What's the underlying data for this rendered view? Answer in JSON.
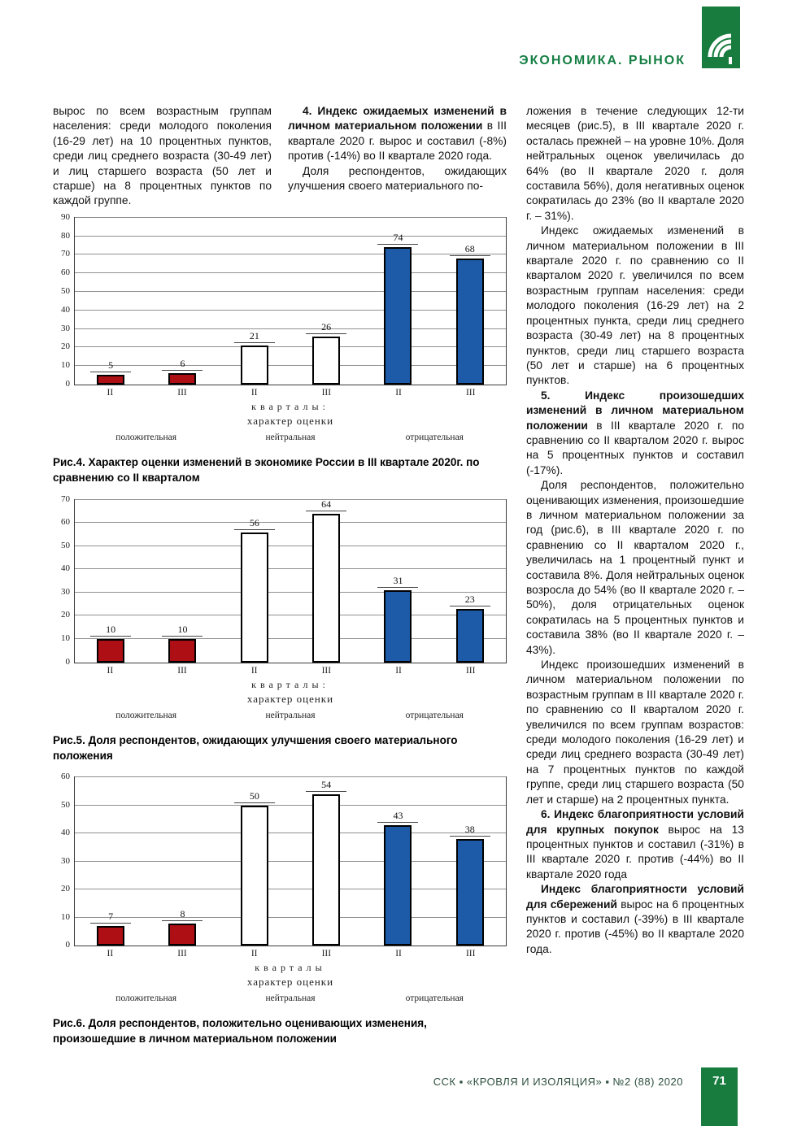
{
  "header": {
    "section_label": "ЭКОНОМИКА. РЫНОК"
  },
  "colors": {
    "brand_green": "#177c3e",
    "bar_positive_red": "#ad0f14",
    "bar_neutral_white": "#ffffff",
    "bar_negative_blue": "#1d5aa8",
    "gridline_gray": "#909090"
  },
  "columns": {
    "left": {
      "paragraphs": [
        {
          "segments": [
            {
              "t": "вырос по всем возрастным группам населения: среди молодого поколения (16-29 лет) на 10 процентных пунктов, среди лиц среднего возраста (30-49 лет) и лиц старшего возраста (50 лет и старше) на 8 процентных пунктов по каждой группе.",
              "b": false
            }
          ]
        }
      ]
    },
    "middle": {
      "paragraphs": [
        {
          "segments": [
            {
              "t": "4. Индекс ожидаемых изменений в личном материальном положении",
              "b": true
            },
            {
              "t": " в III квартале 2020 г. вырос и составил (-8%) против (-14%) во II квартале 2020 года.",
              "b": false
            }
          ]
        },
        {
          "segments": [
            {
              "t": "Доля респондентов, ожидающих улучшения своего материального по-",
              "b": false
            }
          ]
        }
      ]
    },
    "right": {
      "paragraphs": [
        {
          "segments": [
            {
              "t": "ложения в течение следующих 12-ти месяцев (рис.5), в III квартале 2020 г. осталась прежней – на уровне 10%. Доля нейтральных оценок увеличилась до 64% (во II квартале 2020 г. доля составила 56%), доля негативных оценок сократилась до 23% (во II квартале 2020 г. – 31%).",
              "b": false
            }
          ]
        },
        {
          "segments": [
            {
              "t": "Индекс ожидаемых изменений в личном материальном положении в III квартале 2020 г. по сравнению со II кварталом 2020 г. увеличился по всем возрастным группам населения: среди молодого поколения (16-29 лет) на 2 процентных пункта, среди лиц среднего возраста (30-49 лет) на 8 процентных пунктов, среди лиц старшего возраста (50 лет и старше) на 6 процентных пунктов.",
              "b": false
            }
          ]
        },
        {
          "segments": [
            {
              "t": "5. Индекс произошедших изменений в личном материальном положении",
              "b": true
            },
            {
              "t": " в III квартале 2020 г. по сравнению со II кварталом 2020 г. вырос на 5 процентных пунктов и составил (-17%).",
              "b": false
            }
          ]
        },
        {
          "segments": [
            {
              "t": "Доля респондентов, положительно оценивающих изменения, произошедшие в личном материальном положении за год (рис.6), в III квартале 2020 г. по сравнению со II кварталом 2020 г., увеличилась на 1 процентный пункт и составила 8%. Доля нейтральных оценок возросла до 54% (во II квартале 2020 г. – 50%), доля отрицательных оценок сократилась на 5 процентных пунктов и составила 38% (во II квартале 2020 г. – 43%).",
              "b": false
            }
          ]
        },
        {
          "segments": [
            {
              "t": "Индекс произошедших изменений в личном материальном положении по возрастным группам в III квартале 2020 г. по сравнению со II кварталом 2020 г. увеличился по всем группам возрастов: среди молодого поколения (16-29 лет) и среди лиц среднего возраста (30-49 лет) на 7 процентных пунктов по каждой группе, среди лиц старшего возраста (50 лет и старше) на 2 процентных пункта.",
              "b": false
            }
          ]
        },
        {
          "segments": [
            {
              "t": "6. Индекс благоприятности условий для крупных покупок",
              "b": true
            },
            {
              "t": " вырос на 13 процентных пунктов и составил (-31%) в III квартале 2020 г. против (-44%) во II квартале 2020 года",
              "b": false
            }
          ]
        },
        {
          "segments": [
            {
              "t": "Индекс благоприятности условий для сбережений",
              "b": true
            },
            {
              "t": " вырос на 6 процентных пунктов и составил (-39%) в III квартале 2020 г. против (-45%) во II квартале 2020 года.",
              "b": false
            }
          ]
        }
      ]
    }
  },
  "figures": [
    {
      "caption": "Рис.4. Характер оценки изменений в экономике России в III квартале 2020г. по сравнению со II кварталом"
    },
    {
      "caption": "Рис.5. Доля респондентов, ожидающих улучшения своего материального положения"
    },
    {
      "caption": "Рис.6. Доля респондентов, положительно оценивающих изменения, произошедшие в личном материальном положении"
    }
  ],
  "chart_data": [
    {
      "type": "bar",
      "title": "Рис.4. Характер оценки изменений в экономике России в III квартале 2020г. по сравнению со II кварталом",
      "categories": [
        "II",
        "III",
        "II",
        "III",
        "II",
        "III"
      ],
      "values": [
        5,
        6,
        21,
        26,
        74,
        68
      ],
      "bar_colors": [
        "#ad0f14",
        "#ad0f14",
        "#ffffff",
        "#ffffff",
        "#1d5aa8",
        "#1d5aa8"
      ],
      "group_labels": [
        "положительная",
        "нейтральная",
        "отрицательная"
      ],
      "xlabel_line1": "кварталы:",
      "xlabel_line2": "характер оценки",
      "ylabel": "",
      "ylim": [
        0,
        90
      ],
      "ystep": 10,
      "grid": true,
      "legend": "none"
    },
    {
      "type": "bar",
      "title": "Рис.5. Доля респондентов, ожидающих улучшения своего материального положения",
      "categories": [
        "II",
        "III",
        "II",
        "III",
        "II",
        "III"
      ],
      "values": [
        10,
        10,
        56,
        64,
        31,
        23
      ],
      "bar_colors": [
        "#ad0f14",
        "#ad0f14",
        "#ffffff",
        "#ffffff",
        "#1d5aa8",
        "#1d5aa8"
      ],
      "group_labels": [
        "положительная",
        "нейтральная",
        "отрицательная"
      ],
      "xlabel_line1": "кварталы:",
      "xlabel_line2": "характер оценки",
      "ylabel": "",
      "ylim": [
        0,
        70
      ],
      "ystep": 10,
      "grid": true,
      "legend": "none"
    },
    {
      "type": "bar",
      "title": "Рис.6. Доля респондентов, положительно оценивающих изменения, произошедшие в личном материальном положении",
      "categories": [
        "II",
        "III",
        "II",
        "III",
        "II",
        "III"
      ],
      "values": [
        7,
        8,
        50,
        54,
        43,
        38
      ],
      "bar_colors": [
        "#ad0f14",
        "#ad0f14",
        "#ffffff",
        "#ffffff",
        "#1d5aa8",
        "#1d5aa8"
      ],
      "group_labels": [
        "положительная",
        "нейтральная",
        "отрицательная"
      ],
      "xlabel_line1": "кварталы",
      "xlabel_line2": "характер оценки",
      "ylabel": "",
      "ylim": [
        0,
        60
      ],
      "ystep": 10,
      "grid": true,
      "legend": "none"
    }
  ],
  "footer": {
    "journal_line": "ССК ▪ «КРОВЛЯ И ИЗОЛЯЦИЯ» ▪ №2 (88) 2020",
    "page_number": "71"
  }
}
